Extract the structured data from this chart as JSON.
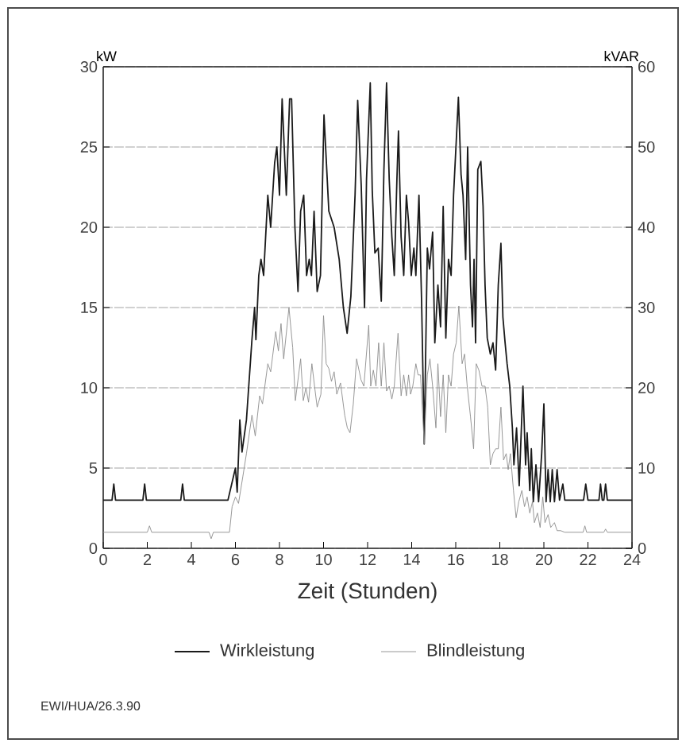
{
  "chart_data": {
    "type": "line",
    "xlabel": "Zeit (Stunden)",
    "ylabel": "kW",
    "y2label": "kVAR",
    "xlim": [
      0,
      24
    ],
    "xticks": [
      0,
      2,
      4,
      6,
      8,
      10,
      12,
      14,
      16,
      18,
      20,
      22,
      24
    ],
    "ylim": [
      0,
      30
    ],
    "yticks": [
      0,
      5,
      10,
      15,
      20,
      25,
      30
    ],
    "y2lim": [
      0,
      60
    ],
    "y2ticks": [
      0,
      10,
      20,
      30,
      40,
      50,
      60
    ],
    "grid": "y",
    "legend": "bottom",
    "marker": "none",
    "line_style": "solid",
    "annotations": [
      "EWI/HUA/26.3.90"
    ],
    "series": [
      {
        "name": "Wirkleistung",
        "color": "#1a1a1a",
        "x": [
          0,
          0.4,
          0.48,
          0.56,
          1.8,
          1.88,
          1.96,
          3.52,
          3.6,
          3.68,
          5.66,
          5.83,
          6.0,
          6.08,
          6.2,
          6.3,
          6.5,
          6.75,
          6.87,
          6.93,
          7.06,
          7.16,
          7.28,
          7.47,
          7.6,
          7.78,
          7.88,
          8.0,
          8.12,
          8.31,
          8.46,
          8.55,
          8.7,
          8.84,
          8.96,
          9.1,
          9.23,
          9.35,
          9.45,
          9.57,
          9.71,
          9.86,
          10.02,
          10.24,
          10.48,
          10.71,
          10.9,
          11.07,
          11.24,
          11.43,
          11.55,
          11.71,
          11.86,
          11.95,
          12.12,
          12.21,
          12.33,
          12.48,
          12.62,
          12.74,
          12.86,
          12.98,
          13.1,
          13.21,
          13.33,
          13.4,
          13.52,
          13.64,
          13.76,
          13.86,
          13.98,
          14.1,
          14.19,
          14.33,
          14.45,
          14.57,
          14.71,
          14.81,
          14.95,
          15.05,
          15.19,
          15.31,
          15.43,
          15.55,
          15.67,
          15.79,
          15.9,
          16.02,
          16.12,
          16.24,
          16.33,
          16.45,
          16.54,
          16.67,
          16.76,
          16.83,
          16.9,
          17.0,
          17.14,
          17.24,
          17.33,
          17.43,
          17.57,
          17.69,
          17.81,
          17.93,
          18.05,
          18.14,
          18.24,
          18.33,
          18.45,
          18.57,
          18.64,
          18.76,
          18.88,
          19.05,
          19.17,
          19.24,
          19.36,
          19.43,
          19.52,
          19.64,
          19.76,
          19.9,
          20.0,
          20.1,
          20.19,
          20.29,
          20.38,
          20.48,
          20.6,
          20.71,
          20.86,
          20.95,
          21.8,
          21.9,
          22.0,
          22.5,
          22.57,
          22.65,
          22.72,
          22.8,
          22.88,
          24
        ],
        "values": [
          3,
          3,
          4,
          3,
          3,
          4,
          3,
          3,
          4,
          3,
          3,
          4,
          5,
          3.5,
          8,
          6,
          8,
          13,
          15,
          13,
          17,
          18,
          17,
          22,
          20,
          24,
          25,
          22,
          28,
          22,
          28,
          28,
          20,
          16,
          21,
          22,
          17,
          18,
          17,
          21,
          16,
          17,
          27,
          21,
          20,
          18,
          15,
          13.4,
          15.7,
          22,
          27.9,
          22.6,
          15,
          23,
          29,
          22.3,
          18.4,
          18.7,
          15.4,
          23.6,
          29,
          23,
          19.4,
          17,
          23,
          26,
          19.4,
          17,
          22,
          20.3,
          17,
          18.7,
          17,
          22,
          15.4,
          6.5,
          18.7,
          17.4,
          19.7,
          12.8,
          16.4,
          13.8,
          21.3,
          13.1,
          18,
          17,
          22,
          25.3,
          28.1,
          23.3,
          22,
          18,
          25,
          16.4,
          13.8,
          18,
          12.8,
          23.6,
          24.1,
          21.3,
          16.4,
          13.1,
          12.1,
          12.8,
          11.1,
          16.4,
          19,
          14.4,
          12.8,
          11.5,
          10.1,
          7.5,
          5.2,
          7.5,
          3.9,
          10.1,
          5.2,
          7.2,
          3.6,
          6.2,
          2.9,
          5.2,
          2.9,
          5.9,
          9,
          2.9,
          4.9,
          2.9,
          4.9,
          2.9,
          4.9,
          3,
          4,
          3,
          3,
          4,
          3,
          3,
          4,
          3,
          3,
          4,
          3,
          3
        ]
      },
      {
        "name": "Blindleistung",
        "color": "#8c8c8c",
        "axis": "y2",
        "x": [
          0,
          2.0,
          2.1,
          2.2,
          4.8,
          4.9,
          5.0,
          5.73,
          5.85,
          6.0,
          6.14,
          6.34,
          6.5,
          6.75,
          6.9,
          7.1,
          7.23,
          7.47,
          7.6,
          7.83,
          7.95,
          8.07,
          8.19,
          8.43,
          8.6,
          8.72,
          8.84,
          8.96,
          9.08,
          9.2,
          9.32,
          9.47,
          9.6,
          9.71,
          9.88,
          10.0,
          10.12,
          10.24,
          10.36,
          10.48,
          10.6,
          10.77,
          10.96,
          11.08,
          11.2,
          11.35,
          11.5,
          11.7,
          11.83,
          12.05,
          12.14,
          12.26,
          12.38,
          12.5,
          12.62,
          12.74,
          12.86,
          12.98,
          13.1,
          13.21,
          13.38,
          13.52,
          13.64,
          13.76,
          13.86,
          13.95,
          14.05,
          14.19,
          14.29,
          14.4,
          14.57,
          14.71,
          14.83,
          14.95,
          15.1,
          15.19,
          15.31,
          15.43,
          15.55,
          15.67,
          15.79,
          15.9,
          16.02,
          16.14,
          16.29,
          16.4,
          16.52,
          16.67,
          16.81,
          16.93,
          17.05,
          17.19,
          17.33,
          17.45,
          17.57,
          17.69,
          17.81,
          17.93,
          18.05,
          18.17,
          18.29,
          18.38,
          18.48,
          18.62,
          18.74,
          18.86,
          19.0,
          19.12,
          19.24,
          19.36,
          19.48,
          19.57,
          19.71,
          19.83,
          19.95,
          20.05,
          20.19,
          20.31,
          20.48,
          20.6,
          20.76,
          20.95,
          21.78,
          21.86,
          21.94,
          22.72,
          22.8,
          22.88,
          24
        ],
        "values": [
          2,
          2,
          2.8,
          2,
          2,
          1.2,
          2,
          2,
          5.2,
          6.4,
          5.6,
          9,
          11.8,
          16.6,
          14,
          19,
          18,
          23,
          22,
          27,
          24.6,
          28,
          23.6,
          30,
          25,
          18.4,
          21,
          23.6,
          18.4,
          20,
          18.2,
          23,
          20,
          17.6,
          19.2,
          29,
          23,
          22.4,
          20.8,
          22,
          19.2,
          20.6,
          16.6,
          15,
          14.4,
          18,
          23.6,
          21,
          20.2,
          27.8,
          20.2,
          22.2,
          20.2,
          25.6,
          20.2,
          25.6,
          19.6,
          20.2,
          18.6,
          20.2,
          26.8,
          19,
          21.6,
          19,
          21.6,
          19.2,
          20.2,
          23,
          21.6,
          21.6,
          13,
          21.6,
          23.6,
          20.2,
          15,
          23,
          16.4,
          21.6,
          14.4,
          21.6,
          20.2,
          24.2,
          25.6,
          30.2,
          23,
          24.2,
          20.2,
          16.4,
          12.4,
          23,
          22.2,
          20.2,
          20.2,
          17.6,
          10.4,
          11.8,
          12.4,
          12.4,
          17.6,
          11,
          11.8,
          9.8,
          11.8,
          7.2,
          3.8,
          5.8,
          7.2,
          5.2,
          6.4,
          4.4,
          5.8,
          3.2,
          4.4,
          2.6,
          6.4,
          3.2,
          4.2,
          2.6,
          3.2,
          2.2,
          2.2,
          2,
          2,
          2.8,
          2,
          2,
          2.4,
          2,
          2
        ]
      }
    ]
  }
}
